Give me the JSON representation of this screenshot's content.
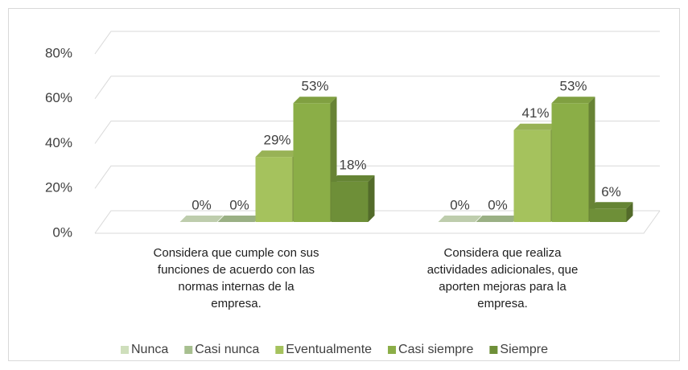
{
  "chart_data": {
    "type": "bar3d",
    "categories": [
      "Considera que cumple con sus funciones de acuerdo con las normas internas de la empresa.",
      "Considera que realiza actividades adicionales, que aporten mejoras para la empresa."
    ],
    "series": [
      {
        "name": "Nunca",
        "color": "#cfdfbc",
        "values": [
          0,
          0
        ],
        "value_labels": [
          "0%",
          "0%"
        ]
      },
      {
        "name": "Casi nunca",
        "color": "#a7bf8f",
        "values": [
          0,
          0
        ],
        "value_labels": [
          "0%",
          "0%"
        ]
      },
      {
        "name": "Eventualmente",
        "color": "#a5c25d",
        "values": [
          29,
          41
        ],
        "value_labels": [
          "29%",
          "41%"
        ]
      },
      {
        "name": "Casi siempre",
        "color": "#8bae47",
        "values": [
          53,
          53
        ],
        "value_labels": [
          "53%",
          "53%"
        ]
      },
      {
        "name": "Siempre",
        "color": "#6e8f38",
        "values": [
          18,
          6
        ],
        "value_labels": [
          "18%",
          "6%"
        ]
      }
    ],
    "ylim": [
      0,
      80
    ],
    "yticks": [
      {
        "value": 0,
        "label": "0%"
      },
      {
        "value": 20,
        "label": "20%"
      },
      {
        "value": 40,
        "label": "40%"
      },
      {
        "value": 60,
        "label": "60%"
      },
      {
        "value": 80,
        "label": "80%"
      }
    ],
    "grid": true,
    "legend": "bottom"
  }
}
